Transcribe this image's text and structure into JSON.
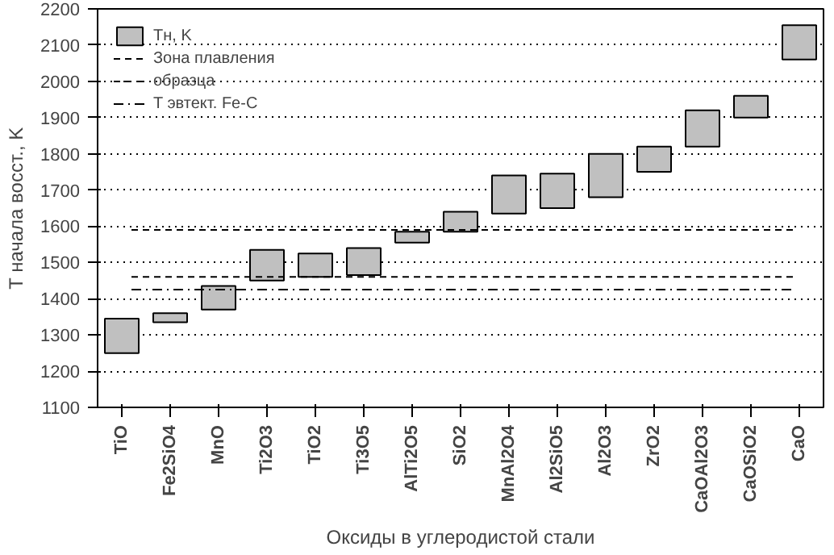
{
  "chart_data": {
    "type": "bar",
    "xlabel": "Оксиды в углеродистой стали",
    "ylabel": "T начала восст., K",
    "categories": [
      "TiO",
      "Fe2SiO4",
      "MnO",
      "Ti2O3",
      "TiO2",
      "Ti3O5",
      "AlTi2O5",
      "SiO2",
      "MnAl2O4",
      "Al2SiO5",
      "Al2O3",
      "ZrO2",
      "CaOAl2O3",
      "CaOSiO2",
      "CaO"
    ],
    "series": [
      {
        "name": "Тн, K",
        "color": "#c0c0c0",
        "base": [
          1250,
          1335,
          1370,
          1450,
          1460,
          1465,
          1555,
          1585,
          1635,
          1650,
          1680,
          1750,
          1820,
          1900,
          2060
        ],
        "values": [
          95,
          25,
          65,
          85,
          65,
          75,
          30,
          55,
          105,
          95,
          120,
          70,
          100,
          60,
          95
        ]
      }
    ],
    "ylim": [
      1100,
      2200
    ],
    "yticks": [
      1100,
      1200,
      1300,
      1400,
      1500,
      1600,
      1700,
      1800,
      1900,
      2000,
      2100,
      2200
    ],
    "ref_lines": [
      {
        "axis": "y",
        "value": 1590,
        "label": "Зона плавления",
        "line_style": "dashed"
      },
      {
        "axis": "y",
        "value": 1460,
        "label": "образца",
        "line_style": "dashed"
      },
      {
        "axis": "y",
        "value": 1425,
        "label": "T эвтект. Fe-C",
        "line_style": "dashdot"
      }
    ],
    "grid": "y",
    "legend": "top left"
  }
}
